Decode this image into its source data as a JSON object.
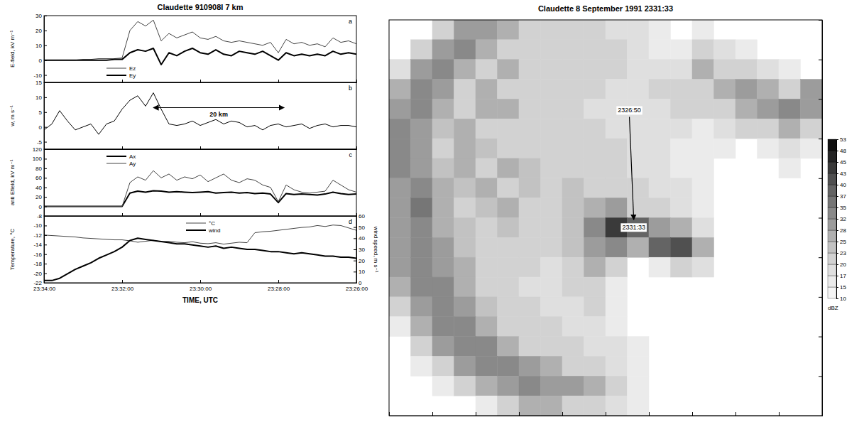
{
  "chart_data": [
    {
      "type": "line",
      "title": "Claudette 910908I 7 km",
      "panel": "a",
      "ylabel": "E-field, kV m⁻¹",
      "x": [
        34.0,
        33.8,
        33.6,
        33.4,
        33.2,
        33.0,
        32.8,
        32.6,
        32.4,
        32.2,
        32.0,
        31.8,
        31.6,
        31.4,
        31.2,
        31.0,
        30.8,
        30.6,
        30.4,
        30.2,
        30.0,
        29.8,
        29.6,
        29.4,
        29.2,
        29.0,
        28.8,
        28.6,
        28.4,
        28.2,
        28.0,
        27.8,
        27.6,
        27.4,
        27.2,
        27.0,
        26.8,
        26.6,
        26.4,
        26.2,
        26.0
      ],
      "xlim": [
        34,
        26
      ],
      "xticks": [
        34,
        32,
        30,
        28,
        26
      ],
      "ylim": [
        -15,
        30
      ],
      "yticks": [
        -10,
        0,
        10,
        20,
        30
      ],
      "tick_labels": "y",
      "legend": "lower left",
      "series": [
        {
          "name": "Ez",
          "color": "#444444",
          "line_style": "thin",
          "values": [
            0,
            0,
            0,
            0,
            0,
            0.5,
            0.5,
            1,
            1,
            1,
            1.5,
            20,
            26,
            23,
            27,
            13,
            18,
            15,
            17,
            19,
            15,
            14,
            16,
            13,
            12,
            13,
            12,
            11,
            10,
            12,
            5,
            14,
            11,
            12,
            10,
            11,
            9,
            15,
            12,
            13,
            11
          ]
        },
        {
          "name": "Ey",
          "color": "#000000",
          "line_style": "thick",
          "values": [
            0,
            0,
            0,
            0,
            0,
            0,
            0,
            0,
            0,
            0.5,
            0.5,
            5,
            7,
            6,
            8,
            -3,
            5,
            3,
            6,
            8,
            5,
            4,
            7,
            4,
            3,
            6,
            5,
            4,
            6,
            3,
            0,
            5,
            3,
            4,
            3,
            4,
            3,
            6,
            4,
            5,
            4
          ]
        }
      ]
    },
    {
      "type": "line",
      "panel": "b",
      "ylabel": "w, m s⁻¹",
      "x": [
        34.0,
        33.8,
        33.6,
        33.4,
        33.2,
        33.0,
        32.8,
        32.6,
        32.4,
        32.2,
        32.0,
        31.8,
        31.6,
        31.4,
        31.2,
        31.0,
        30.8,
        30.6,
        30.4,
        30.2,
        30.0,
        29.8,
        29.6,
        29.4,
        29.2,
        29.0,
        28.8,
        28.6,
        28.4,
        28.2,
        28.0,
        27.8,
        27.6,
        27.4,
        27.2,
        27.0,
        26.8,
        26.6,
        26.4,
        26.2,
        26.0
      ],
      "xlim": [
        34,
        26
      ],
      "xticks": [
        34,
        32,
        30,
        28,
        26
      ],
      "ylim": [
        -7.5,
        15
      ],
      "yticks": [
        -5,
        0,
        5,
        10,
        15
      ],
      "tick_labels": "y",
      "annotations": [
        {
          "text": "20 km",
          "x": [
            31.2,
            27.85
          ],
          "y": 6.5
        }
      ],
      "series": [
        {
          "color": "#000000",
          "line_style": "thin",
          "values": [
            -1,
            1,
            5.5,
            2,
            -1,
            0,
            1,
            -2.5,
            1,
            2,
            6,
            9,
            10.5,
            7,
            11.5,
            6,
            1,
            0.5,
            1,
            2,
            0.5,
            1.5,
            2.5,
            1,
            2,
            1.5,
            0,
            0.5,
            -1,
            0.5,
            1,
            0,
            0.5,
            1,
            -0.5,
            0.5,
            1,
            0,
            0.5,
            0.5,
            0
          ]
        }
      ]
    },
    {
      "type": "line",
      "panel": "c",
      "ylabel": "anti Efield, kV m⁻¹",
      "x": [
        34.0,
        33.8,
        33.6,
        33.4,
        33.2,
        33.0,
        32.8,
        32.6,
        32.4,
        32.2,
        32.0,
        31.8,
        31.6,
        31.4,
        31.2,
        31.0,
        30.8,
        30.6,
        30.4,
        30.2,
        30.0,
        29.8,
        29.6,
        29.4,
        29.2,
        29.0,
        28.8,
        28.6,
        28.4,
        28.2,
        28.0,
        27.8,
        27.6,
        27.4,
        27.2,
        27.0,
        26.8,
        26.6,
        26.4,
        26.2,
        26.0
      ],
      "xlim": [
        34,
        26
      ],
      "xticks": [
        34,
        32,
        30,
        28,
        26
      ],
      "ylim": [
        -20,
        120
      ],
      "yticks": [
        0,
        20,
        40,
        60,
        80,
        100,
        120
      ],
      "tick_labels": "y",
      "legend": "upper left",
      "series": [
        {
          "name": "Ax",
          "color": "#000000",
          "line_style": "thick",
          "values": [
            0,
            0,
            0,
            0,
            0,
            0,
            0,
            0,
            0,
            0,
            0,
            28,
            32,
            30,
            33,
            32,
            30,
            31,
            30,
            29,
            30,
            31,
            28,
            29,
            30,
            28,
            29,
            27,
            28,
            26,
            8,
            27,
            25,
            26,
            25,
            24,
            26,
            30,
            27,
            25,
            26
          ]
        },
        {
          "name": "Ay",
          "color": "#444444",
          "line_style": "thin",
          "values": [
            0,
            0,
            0,
            0,
            0,
            0,
            0,
            0,
            0,
            0,
            0,
            50,
            62,
            55,
            75,
            60,
            68,
            55,
            62,
            58,
            66,
            52,
            60,
            68,
            55,
            50,
            58,
            55,
            45,
            40,
            10,
            45,
            35,
            30,
            28,
            30,
            32,
            55,
            45,
            35,
            30
          ]
        }
      ]
    },
    {
      "type": "line",
      "panel": "d",
      "ylabel": "Temperature, °C",
      "y2label": "wind speed, m s⁻¹",
      "xlabel": "TIME, UTC",
      "x": [
        34.0,
        33.8,
        33.6,
        33.4,
        33.2,
        33.0,
        32.8,
        32.6,
        32.4,
        32.2,
        32.0,
        31.8,
        31.6,
        31.4,
        31.2,
        31.0,
        30.8,
        30.6,
        30.4,
        30.2,
        30.0,
        29.8,
        29.6,
        29.4,
        29.2,
        29.0,
        28.8,
        28.6,
        28.4,
        28.2,
        28.0,
        27.8,
        27.6,
        27.4,
        27.2,
        27.0,
        26.8,
        26.6,
        26.4,
        26.2,
        26.0
      ],
      "xlim": [
        34,
        26
      ],
      "xticks": [
        {
          "value": 34,
          "label": "23:34:00"
        },
        {
          "value": 32,
          "label": "23:32:00"
        },
        {
          "value": 30,
          "label": "23:30:00"
        },
        {
          "value": 28,
          "label": "23:28:00"
        },
        {
          "value": 26,
          "label": "23:26:00"
        }
      ],
      "ylim": [
        -22,
        -8
      ],
      "yticks": [
        -22,
        -20,
        -18,
        -16,
        -14,
        -12,
        -10,
        -8
      ],
      "y2lim": [
        0,
        60
      ],
      "y2ticks": [
        0,
        10,
        20,
        30,
        40,
        50,
        60
      ],
      "legend": "upper center",
      "series": [
        {
          "name": "°C",
          "color": "#444444",
          "line_style": "thin",
          "values": [
            -12.0,
            -12.1,
            -12.2,
            -12.3,
            -12.4,
            -12.6,
            -12.7,
            -12.8,
            -12.9,
            -13.0,
            -13.0,
            -13.2,
            -13.5,
            -13.3,
            -13.1,
            -13.4,
            -13.3,
            -13.5,
            -13.6,
            -13.4,
            -13.7,
            -13.8,
            -13.6,
            -13.9,
            -13.7,
            -13.5,
            -13.6,
            -11.5,
            -11.3,
            -11.2,
            -11.0,
            -10.8,
            -10.6,
            -10.4,
            -10.3,
            -10.0,
            -10.2,
            -9.9,
            -10.0,
            -10.5,
            -11.0
          ]
        },
        {
          "name": "wind",
          "color": "#000000",
          "line_style": "thick",
          "axis": "y2",
          "values": [
            2,
            2,
            4,
            8,
            12,
            15,
            18,
            22,
            25,
            28,
            32,
            38,
            40,
            39,
            38,
            37,
            36,
            35,
            35,
            34,
            33,
            32,
            33,
            31,
            32,
            31,
            30,
            30,
            29,
            28,
            28,
            27,
            26,
            27,
            26,
            25,
            24,
            24,
            23,
            23,
            22
          ]
        }
      ]
    },
    {
      "type": "heatmap",
      "title": "Claudette 8 September 1991 2331:33",
      "x": [
        0.5,
        1.5,
        2.5,
        3.5,
        4.5,
        5.5,
        6.5,
        7.5,
        8.5,
        9.5,
        10.5,
        11.5,
        12.5,
        13.5,
        14.5,
        15.5,
        16.5,
        17.5,
        18.5,
        19.5
      ],
      "y": [
        19.5,
        18.5,
        17.5,
        16.5,
        15.5,
        14.5,
        13.5,
        12.5,
        11.5,
        10.5,
        9.5,
        8.5,
        7.5,
        6.5,
        5.5,
        4.5,
        3.5,
        2.5,
        1.5,
        0.5
      ],
      "z": [
        [
          null,
          null,
          20,
          28,
          30,
          25,
          20,
          20,
          20,
          20,
          18,
          18,
          15,
          null,
          15,
          null,
          null,
          null,
          null,
          null
        ],
        [
          null,
          20,
          30,
          32,
          25,
          22,
          20,
          22,
          20,
          20,
          20,
          18,
          15,
          15,
          20,
          18,
          15,
          null,
          null,
          null
        ],
        [
          18,
          28,
          33,
          25,
          22,
          25,
          22,
          20,
          22,
          20,
          20,
          18,
          18,
          18,
          25,
          22,
          20,
          18,
          15,
          null
        ],
        [
          25,
          33,
          28,
          22,
          25,
          22,
          20,
          22,
          20,
          20,
          18,
          18,
          20,
          20,
          22,
          25,
          28,
          25,
          22,
          28
        ],
        [
          28,
          33,
          25,
          22,
          25,
          25,
          22,
          20,
          20,
          18,
          18,
          18,
          18,
          20,
          20,
          22,
          25,
          30,
          33,
          30
        ],
        [
          32,
          30,
          23,
          25,
          22,
          22,
          20,
          20,
          20,
          20,
          18,
          18,
          18,
          18,
          15,
          18,
          20,
          22,
          25,
          20
        ],
        [
          33,
          28,
          22,
          25,
          23,
          22,
          20,
          22,
          20,
          20,
          20,
          18,
          18,
          15,
          15,
          15,
          null,
          15,
          18,
          15
        ],
        [
          33,
          30,
          23,
          25,
          22,
          25,
          23,
          22,
          20,
          22,
          20,
          18,
          18,
          15,
          15,
          null,
          null,
          null,
          15,
          null
        ],
        [
          30,
          33,
          25,
          23,
          25,
          22,
          23,
          22,
          23,
          22,
          22,
          20,
          18,
          18,
          15,
          null,
          null,
          null,
          null,
          null
        ],
        [
          28,
          35,
          25,
          22,
          23,
          25,
          22,
          22,
          23,
          25,
          28,
          22,
          22,
          18,
          15,
          null,
          null,
          null,
          null,
          null
        ],
        [
          28,
          33,
          25,
          23,
          22,
          23,
          22,
          20,
          23,
          32,
          43,
          38,
          28,
          25,
          18,
          null,
          null,
          null,
          null,
          null
        ],
        [
          30,
          33,
          28,
          23,
          22,
          22,
          20,
          20,
          23,
          30,
          33,
          25,
          37,
          40,
          25,
          null,
          null,
          null,
          null,
          null
        ],
        [
          28,
          32,
          30,
          25,
          22,
          20,
          20,
          18,
          20,
          25,
          20,
          null,
          15,
          20,
          18,
          null,
          null,
          null,
          null,
          null
        ],
        [
          25,
          32,
          33,
          25,
          22,
          20,
          18,
          18,
          20,
          22,
          15,
          null,
          null,
          null,
          null,
          null,
          null,
          null,
          null,
          null
        ],
        [
          20,
          30,
          33,
          28,
          23,
          20,
          20,
          18,
          18,
          20,
          15,
          null,
          null,
          null,
          null,
          null,
          null,
          null,
          null,
          null
        ],
        [
          15,
          25,
          32,
          33,
          25,
          22,
          20,
          20,
          18,
          18,
          15,
          null,
          null,
          null,
          null,
          null,
          null,
          null,
          null,
          null
        ],
        [
          null,
          20,
          28,
          33,
          32,
          25,
          22,
          20,
          20,
          18,
          18,
          15,
          null,
          null,
          null,
          null,
          null,
          null,
          null,
          null
        ],
        [
          null,
          15,
          20,
          28,
          33,
          32,
          28,
          25,
          22,
          20,
          18,
          15,
          null,
          null,
          null,
          null,
          null,
          null,
          null,
          null
        ],
        [
          null,
          null,
          15,
          20,
          25,
          30,
          32,
          30,
          28,
          25,
          20,
          15,
          null,
          null,
          null,
          null,
          null,
          null,
          null,
          null
        ],
        [
          null,
          null,
          null,
          null,
          15,
          20,
          25,
          25,
          22,
          20,
          18,
          15,
          null,
          null,
          null,
          null,
          null,
          null,
          null,
          null
        ]
      ],
      "xlim": [
        0,
        20
      ],
      "xticks": [
        0,
        2,
        4,
        6,
        8,
        10,
        12,
        14,
        16,
        18,
        20
      ],
      "ylim": [
        0,
        20
      ],
      "yticks": [
        0,
        2,
        4,
        6,
        8,
        10,
        12,
        14,
        16,
        18,
        20
      ],
      "tick_labels": false,
      "colorbar": {
        "label": "dBZ",
        "ticks": [
          10,
          15,
          17,
          20,
          23,
          25,
          28,
          32,
          35,
          37,
          40,
          43,
          45,
          48,
          53
        ]
      },
      "track": {
        "x": [
          11.1,
          11.3
        ],
        "y": [
          15.1,
          9.9
        ],
        "labels": [
          "2326:50",
          "2331:33"
        ]
      }
    }
  ]
}
